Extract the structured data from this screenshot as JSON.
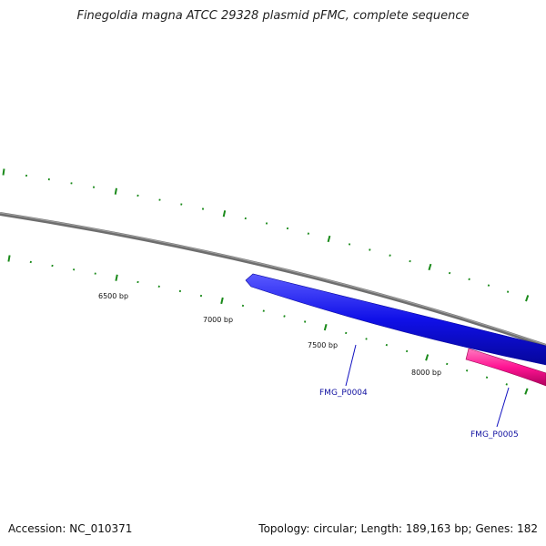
{
  "title": "Finegoldia magna ATCC 29328 plasmid pFMC, complete sequence",
  "footer": {
    "accession": "Accession: NC_010371",
    "summary": "Topology: circular; Length: 189,163 bp; Genes: 182"
  },
  "ruler": {
    "tick_labels": [
      "6500 bp",
      "7000 bp",
      "7500 bp",
      "8000 bp"
    ]
  },
  "genes": [
    {
      "name": "FMG_P0004",
      "strand": "reverse",
      "color": "#1010e8",
      "label_color": "#1010a0"
    },
    {
      "name": "FMG_P0005",
      "strand": "reverse",
      "color": "#ff1493",
      "label_color": "#1010a0"
    }
  ],
  "colors": {
    "backbone": "#7a7a7a",
    "ticks": "#1a8a1a",
    "label_line": "#1010c0"
  }
}
